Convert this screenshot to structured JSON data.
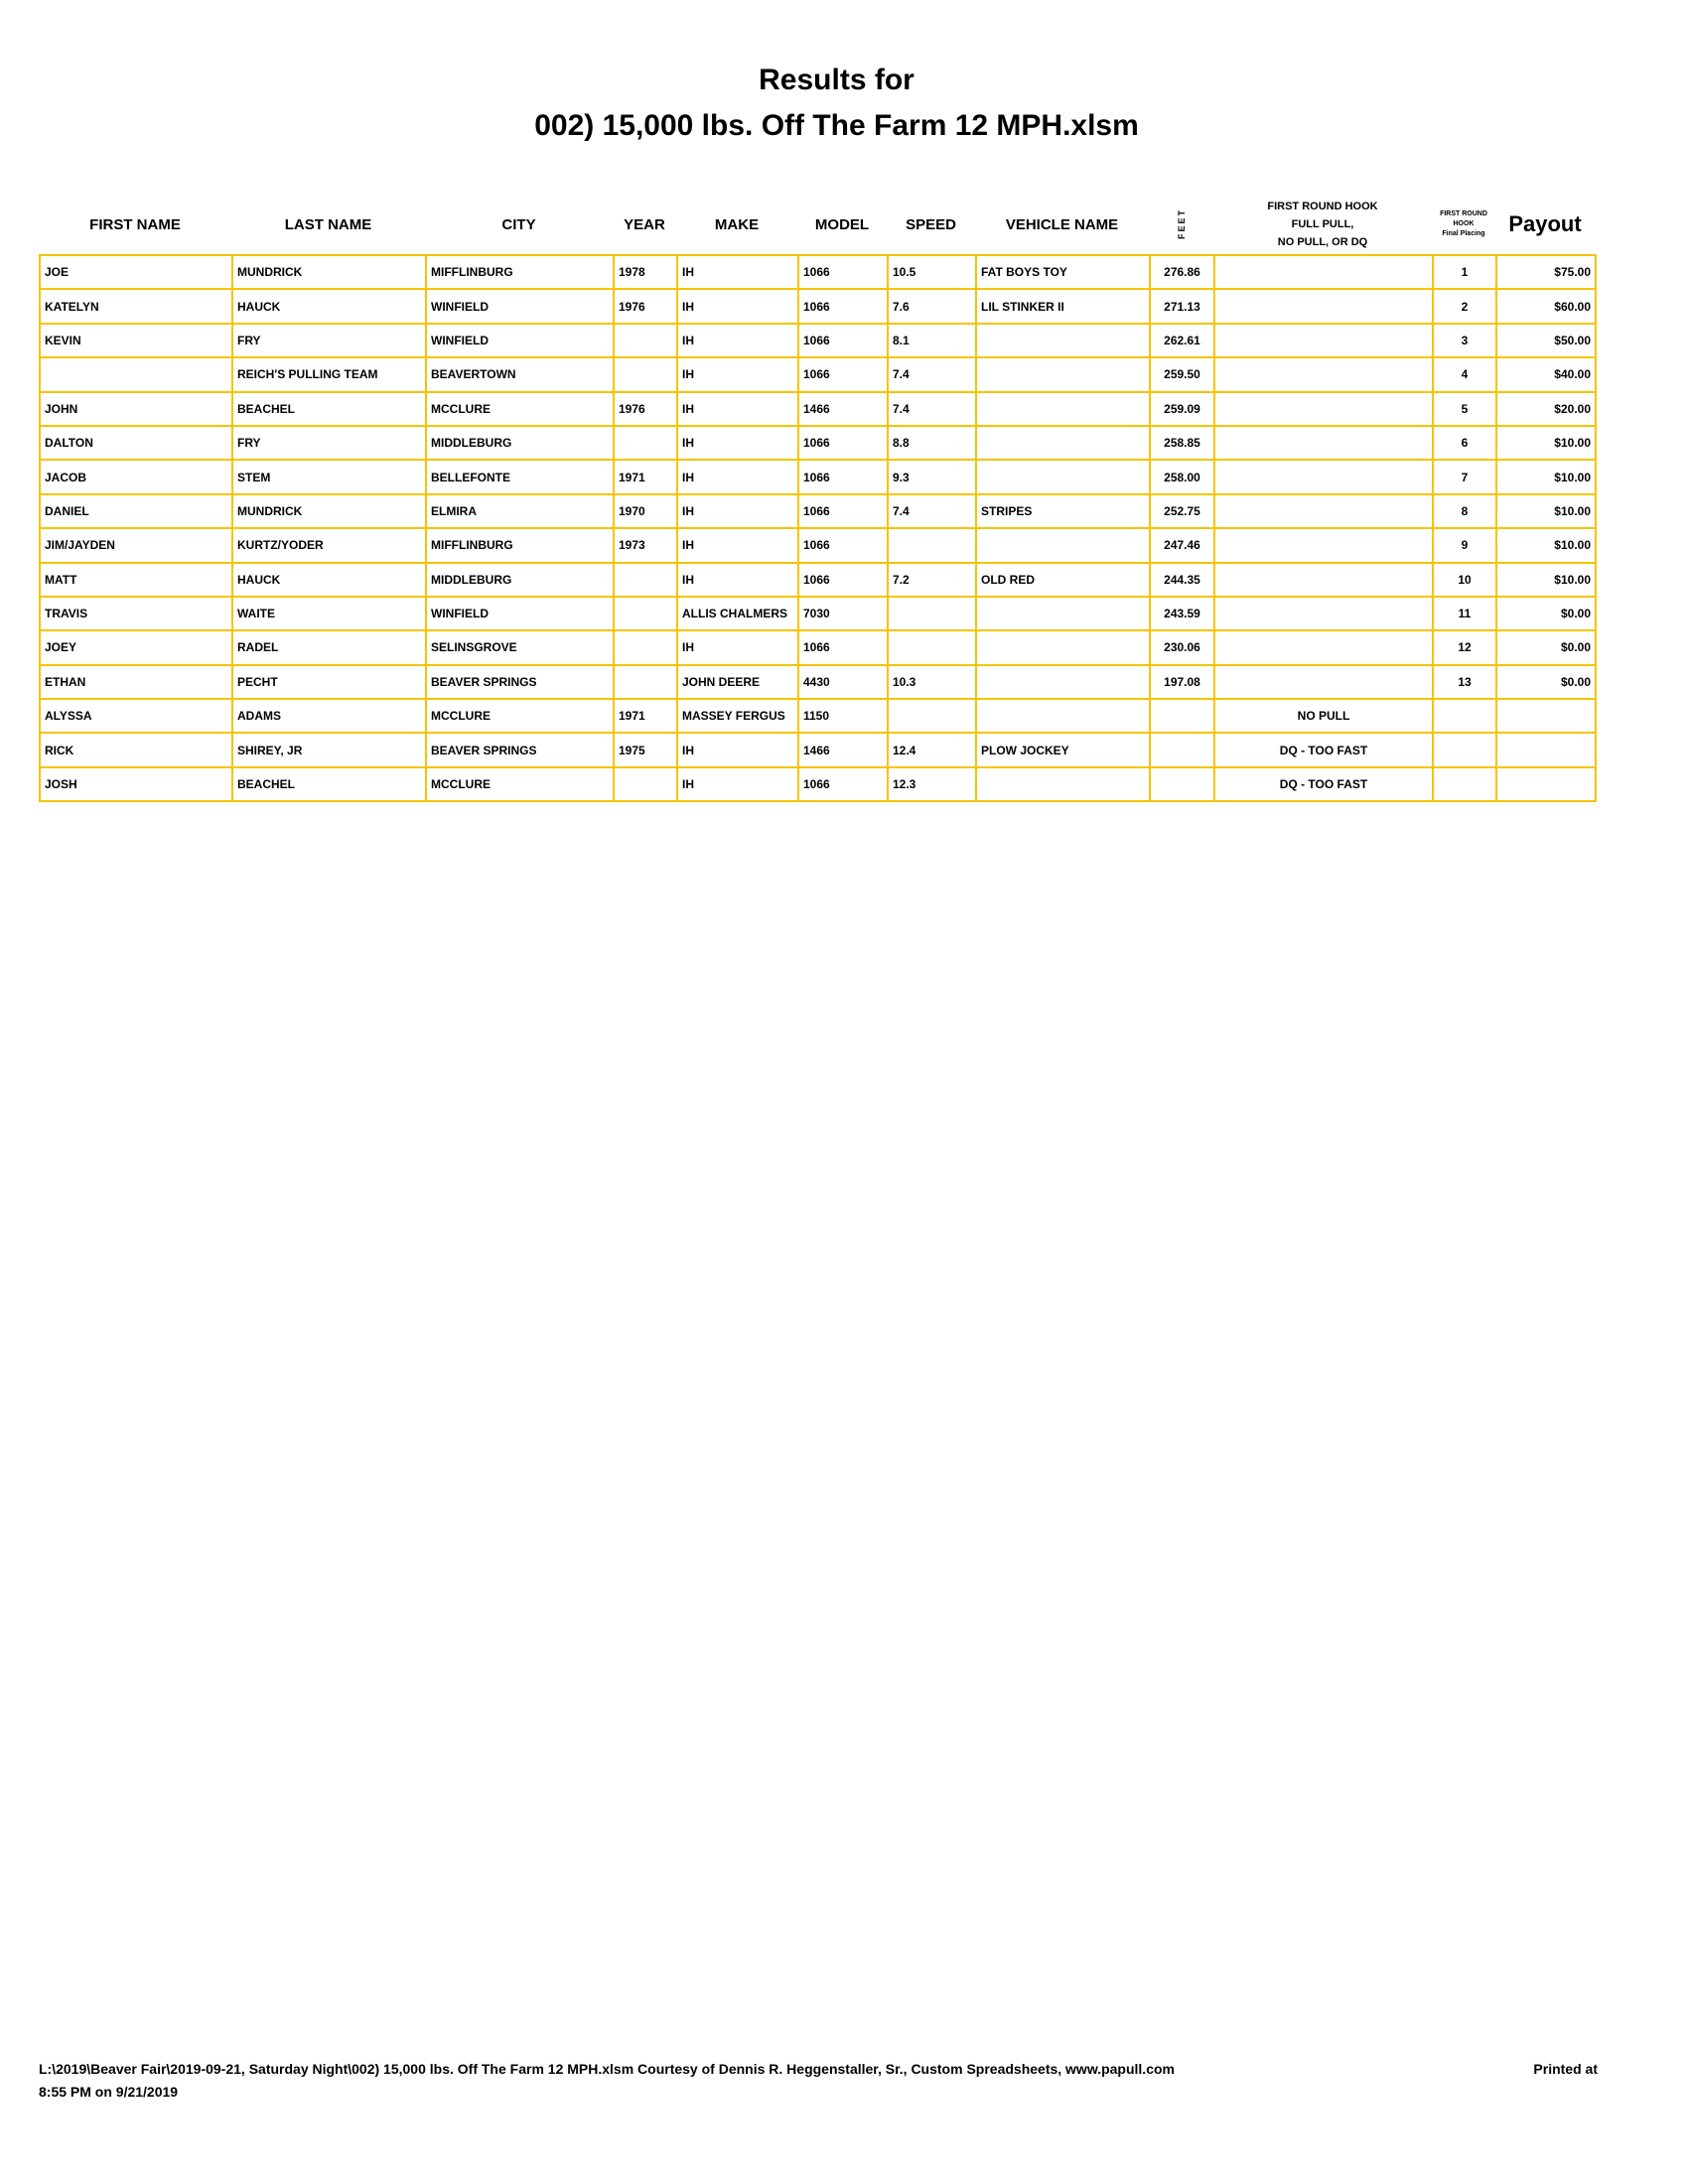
{
  "title_line1": "Results for",
  "title_line2": "002) 15,000 lbs. Off The Farm 12 MPH.xlsm",
  "headers": {
    "first_name": "FIRST NAME",
    "last_name": "LAST NAME",
    "city": "CITY",
    "year": "YEAR",
    "make": "MAKE",
    "model": "MODEL",
    "speed": "SPEED",
    "vehicle_name": "VEHICLE NAME",
    "feet": "FEET",
    "hook_1": "FIRST ROUND HOOK",
    "hook_2": "FULL PULL,",
    "hook_3": "NO PULL, OR DQ",
    "placing_1": "FIRST ROUND",
    "placing_2": "HOOK",
    "placing_3": "Final Placing",
    "payout": "Payout"
  },
  "rows": [
    [
      "JOE",
      "MUNDRICK",
      "MIFFLINBURG",
      "1978",
      "IH",
      "1066",
      "10.5",
      "FAT BOYS TOY",
      "276.86",
      "",
      "1",
      "$75.00"
    ],
    [
      "KATELYN",
      "HAUCK",
      "WINFIELD",
      "1976",
      "IH",
      "1066",
      "7.6",
      "LIL STINKER II",
      "271.13",
      "",
      "2",
      "$60.00"
    ],
    [
      "KEVIN",
      "FRY",
      "WINFIELD",
      "",
      "IH",
      "1066",
      "8.1",
      "",
      "262.61",
      "",
      "3",
      "$50.00"
    ],
    [
      "",
      "REICH'S PULLING TEAM",
      "BEAVERTOWN",
      "",
      "IH",
      "1066",
      "7.4",
      "",
      "259.50",
      "",
      "4",
      "$40.00"
    ],
    [
      "JOHN",
      "BEACHEL",
      "MCCLURE",
      "1976",
      "IH",
      "1466",
      "7.4",
      "",
      "259.09",
      "",
      "5",
      "$20.00"
    ],
    [
      "DALTON",
      "FRY",
      "MIDDLEBURG",
      "",
      "IH",
      "1066",
      "8.8",
      "",
      "258.85",
      "",
      "6",
      "$10.00"
    ],
    [
      "JACOB",
      "STEM",
      "BELLEFONTE",
      "1971",
      "IH",
      "1066",
      "9.3",
      "",
      "258.00",
      "",
      "7",
      "$10.00"
    ],
    [
      "DANIEL",
      "MUNDRICK",
      "ELMIRA",
      "1970",
      "IH",
      "1066",
      "7.4",
      "STRIPES",
      "252.75",
      "",
      "8",
      "$10.00"
    ],
    [
      "JIM/JAYDEN",
      "KURTZ/YODER",
      "MIFFLINBURG",
      "1973",
      "IH",
      "1066",
      "",
      "",
      "247.46",
      "",
      "9",
      "$10.00"
    ],
    [
      "MATT",
      "HAUCK",
      "MIDDLEBURG",
      "",
      "IH",
      "1066",
      "7.2",
      "OLD RED",
      "244.35",
      "",
      "10",
      "$10.00"
    ],
    [
      "TRAVIS",
      "WAITE",
      "WINFIELD",
      "",
      "ALLIS CHALMERS",
      "7030",
      "",
      "",
      "243.59",
      "",
      "11",
      "$0.00"
    ],
    [
      "JOEY",
      "RADEL",
      "SELINSGROVE",
      "",
      "IH",
      "1066",
      "",
      "",
      "230.06",
      "",
      "12",
      "$0.00"
    ],
    [
      "ETHAN",
      "PECHT",
      "BEAVER SPRINGS",
      "",
      "JOHN DEERE",
      "4430",
      "10.3",
      "",
      "197.08",
      "",
      "13",
      "$0.00"
    ],
    [
      "ALYSSA",
      "ADAMS",
      "MCCLURE",
      "1971",
      "MASSEY FERGUS",
      "1150",
      "",
      "",
      "",
      "NO PULL",
      "",
      ""
    ],
    [
      "RICK",
      "SHIREY, JR",
      "BEAVER SPRINGS",
      "1975",
      "IH",
      "1466",
      "12.4",
      "PLOW JOCKEY",
      "",
      "DQ - TOO FAST",
      "",
      ""
    ],
    [
      "JOSH",
      "BEACHEL",
      "MCCLURE",
      "",
      "IH",
      "1066",
      "12.3",
      "",
      "",
      "DQ - TOO FAST",
      "",
      ""
    ]
  ],
  "footer": {
    "path": "L:\\2019\\Beaver Fair\\2019-09-21, Saturday Night\\002) 15,000 lbs. Off The Farm 12 MPH.xlsm  Courtesy of Dennis R. Heggenstaller, Sr., Custom Spreadsheets, www.papull.com",
    "printed_at": "Printed at",
    "printed_time": "8:55 PM on 9/21/2019"
  },
  "colors": {
    "grid": "#f5c400"
  }
}
